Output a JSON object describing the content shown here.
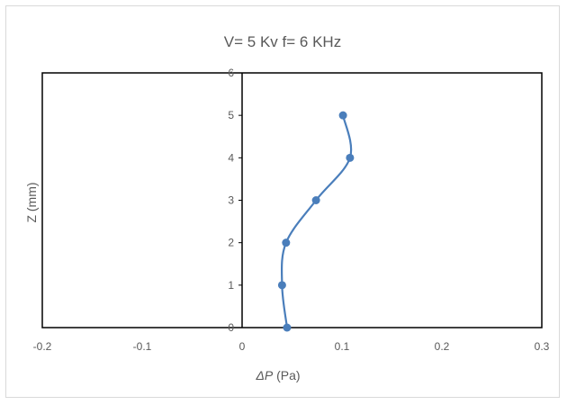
{
  "chart_data": {
    "type": "scatter",
    "title": "V= 5 Kv f= 6 KHz",
    "xlabel": "ΔP (Pa)",
    "ylabel": "Z (mm)",
    "xlim": [
      -0.2,
      0.3
    ],
    "ylim": [
      0,
      6
    ],
    "xticks": [
      "-0.2",
      "-0.1",
      "0",
      "0.1",
      "0.2",
      "0.3"
    ],
    "yticks": [
      "0",
      "1",
      "2",
      "3",
      "4",
      "5",
      "6"
    ],
    "grid": false,
    "legend": "none",
    "smooth_line": true,
    "series": [
      {
        "color": "#4a7ebb",
        "points": [
          {
            "x": 0.045,
            "y": 0
          },
          {
            "x": 0.04,
            "y": 1
          },
          {
            "x": 0.044,
            "y": 2
          },
          {
            "x": 0.074,
            "y": 3
          },
          {
            "x": 0.108,
            "y": 4
          },
          {
            "x": 0.101,
            "y": 5
          }
        ]
      }
    ]
  }
}
